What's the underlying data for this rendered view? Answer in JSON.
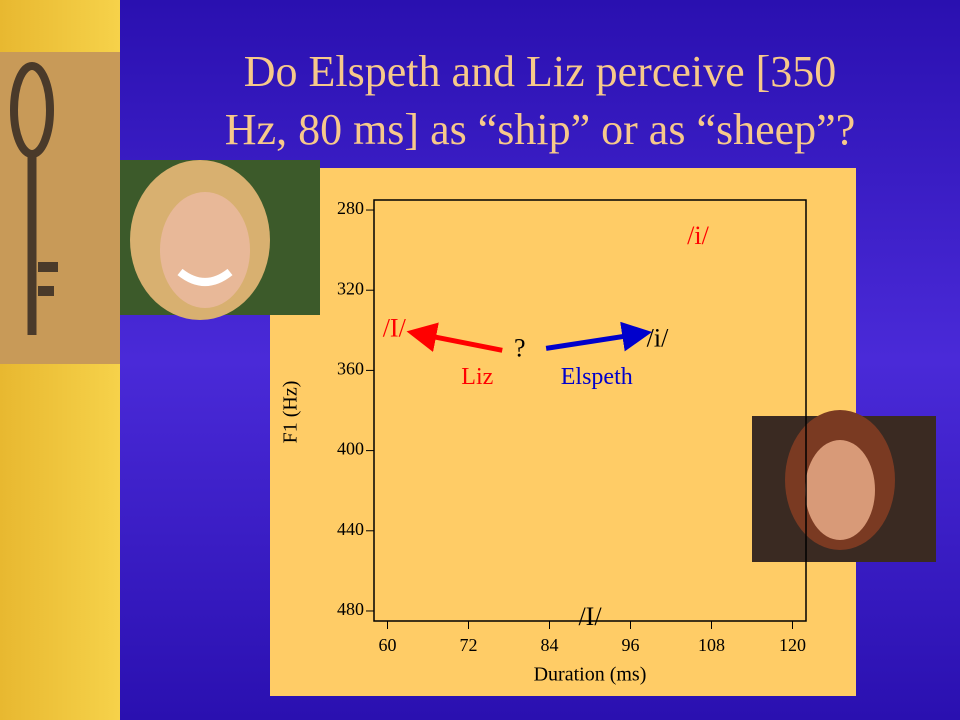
{
  "slide": {
    "title_lines": [
      "Do Elspeth and Liz perceive [350",
      "Hz, 80 ms] as “ship” or as “sheep”?"
    ]
  },
  "chart_data": {
    "type": "annotated",
    "x_label": "Duration (ms)",
    "y_label": "F1 (Hz)",
    "xlim": [
      58,
      122
    ],
    "xticks": [
      60,
      72,
      84,
      96,
      108,
      120
    ],
    "ylim": [
      275,
      485
    ],
    "y_inverted": true,
    "yticks": [
      280,
      320,
      360,
      400,
      440,
      480
    ],
    "annotations": [
      {
        "text": "/i/",
        "x": 106,
        "y": 294,
        "color": "#ff0000"
      },
      {
        "text": "/I/",
        "x": 61,
        "y": 340,
        "color": "#ff0000"
      },
      {
        "text": "?",
        "x": 79.6,
        "y": 350,
        "color": "#000000"
      },
      {
        "text": "/i/",
        "x": 100,
        "y": 345,
        "color": "#000000"
      },
      {
        "text": "/I/",
        "x": 90,
        "y": 484,
        "color": "#000000"
      }
    ],
    "series": [
      {
        "name": "Liz",
        "color": "#ff0000",
        "x": [
          77,
          65
        ],
        "y": [
          350,
          342
        ],
        "label_x": 73.3,
        "label_y": 364
      },
      {
        "name": "Elspeth",
        "color": "#0000cc",
        "x": [
          83.5,
          97
        ],
        "y": [
          349,
          342
        ],
        "label_x": 91,
        "label_y": 364
      }
    ]
  }
}
